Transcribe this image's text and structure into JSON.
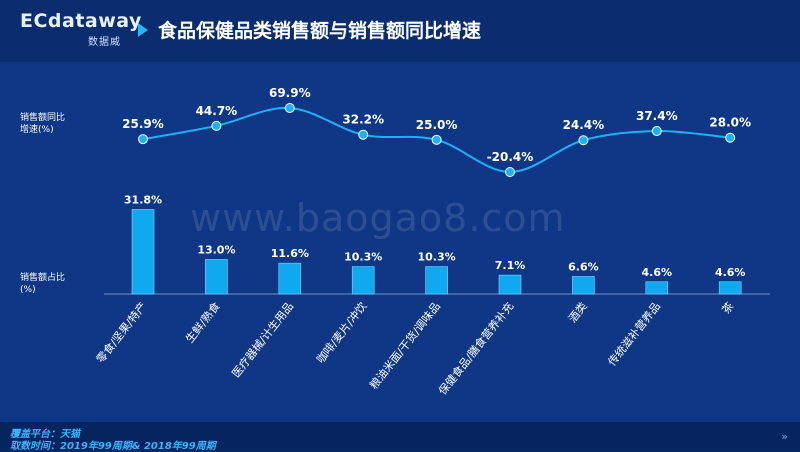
{
  "header": {
    "logo_name": "ECdataway",
    "logo_sub": "数据威",
    "title": "食品保健品类销售额与销售额同比增速"
  },
  "watermark": "www.baogao8.com",
  "labels": {
    "growth_axis": "销售额同比\n增速(%)",
    "share_axis": "销售额占比\n(%)"
  },
  "chart_data": {
    "type": "bar",
    "categories": [
      "零食/坚果/特产",
      "生鲜/熟食",
      "医疗器械/计生用品",
      "咖啡/麦片/冲饮",
      "粮油米面/干货/调味品",
      "保健食品/膳食营养补充",
      "酒类",
      "传统滋补营养品",
      "茶"
    ],
    "series": [
      {
        "values": [
          31.8,
          13.0,
          11.6,
          10.3,
          10.3,
          7.1,
          6.6,
          4.6,
          4.6
        ],
        "labels": [
          "31.8%",
          "13.0%",
          "11.6%",
          "10.3%",
          "10.3%",
          "7.1%",
          "6.6%",
          "4.6%",
          "4.6%"
        ]
      },
      {
        "type": "line",
        "values": [
          25.9,
          44.7,
          69.9,
          32.2,
          25.0,
          -20.4,
          24.4,
          37.4,
          28.0
        ],
        "labels": [
          "25.9%",
          "44.7%",
          "69.9%",
          "32.2%",
          "25.0%",
          "-20.4%",
          "24.4%",
          "37.4%",
          "28.0%"
        ]
      }
    ],
    "colors": {
      "bar": "#10a9f0",
      "bar_edge": "#7fd3ff",
      "line": "#1fb0f5",
      "text": "#ffffff"
    }
  },
  "footer": {
    "line1": "覆盖平台：天猫",
    "line2": "取数时间：2019年99周期& 2018年99周期",
    "next": "»"
  }
}
